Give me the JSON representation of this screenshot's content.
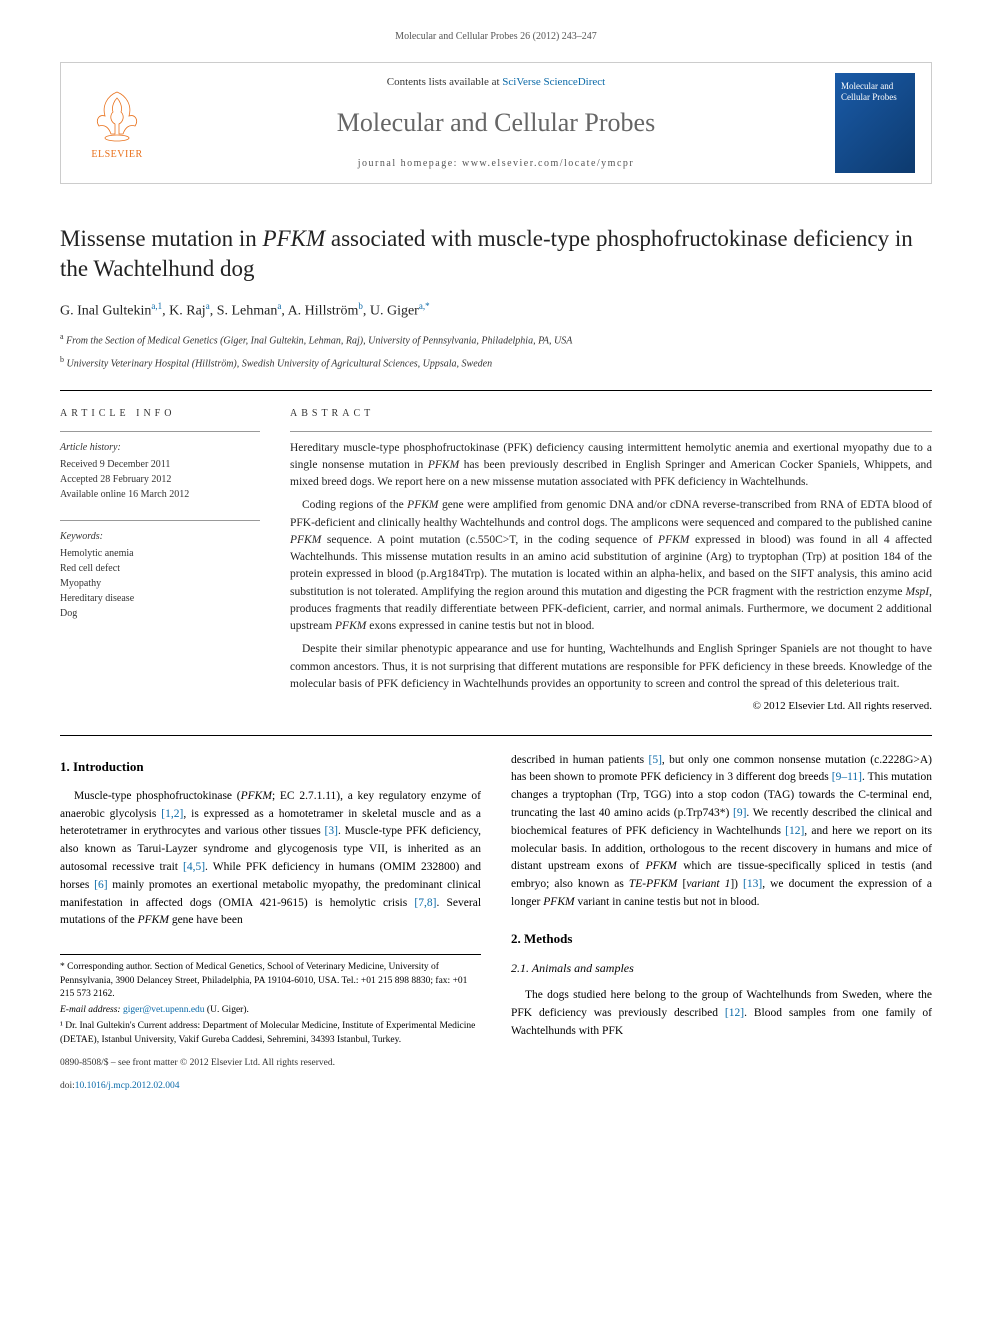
{
  "header_citation": "Molecular and Cellular Probes 26 (2012) 243–247",
  "masthead": {
    "contents_prefix": "Contents lists available at ",
    "contents_link": "SciVerse ScienceDirect",
    "journal_name": "Molecular and Cellular Probes",
    "homepage_prefix": "journal homepage: ",
    "homepage_url": "www.elsevier.com/locate/ymcpr",
    "publisher": "ELSEVIER",
    "cover_text": "Molecular and Cellular Probes"
  },
  "title_parts": {
    "pre": "Missense mutation in ",
    "gene": "PFKM",
    "post": " associated with muscle-type phosphofructokinase deficiency in the Wachtelhund dog"
  },
  "authors_html": "G. Inal Gultekin<sup>a,1</sup>, K. Raj<sup>a</sup>, S. Lehman<sup>a</sup>, A. Hillström<sup>b</sup>, U. Giger<sup>a,*</sup>",
  "affiliations": [
    {
      "sup": "a",
      "text": "From the Section of Medical Genetics (Giger, Inal Gultekin, Lehman, Raj), University of Pennsylvania, Philadelphia, PA, USA"
    },
    {
      "sup": "b",
      "text": "University Veterinary Hospital (Hillström), Swedish University of Agricultural Sciences, Uppsala, Sweden"
    }
  ],
  "article_info": {
    "label": "ARTICLE INFO",
    "history_hdr": "Article history:",
    "history": [
      "Received 9 December 2011",
      "Accepted 28 February 2012",
      "Available online 16 March 2012"
    ],
    "keywords_hdr": "Keywords:",
    "keywords": [
      "Hemolytic anemia",
      "Red cell defect",
      "Myopathy",
      "Hereditary disease",
      "Dog"
    ]
  },
  "abstract": {
    "label": "ABSTRACT",
    "paragraphs": [
      "Hereditary muscle-type phosphofructokinase (PFK) deficiency causing intermittent hemolytic anemia and exertional myopathy due to a single nonsense mutation in <span class=\"gene\">PFKM</span> has been previously described in English Springer and American Cocker Spaniels, Whippets, and mixed breed dogs. We report here on a new missense mutation associated with PFK deficiency in Wachtelhunds.",
      "Coding regions of the <span class=\"gene\">PFKM</span> gene were amplified from genomic DNA and/or cDNA reverse-transcribed from RNA of EDTA blood of PFK-deficient and clinically healthy Wachtelhunds and control dogs. The amplicons were sequenced and compared to the published canine <span class=\"gene\">PFKM</span> sequence. A point mutation (c.550C>T, in the coding sequence of <span class=\"gene\">PFKM</span> expressed in blood) was found in all 4 affected Wachtelhunds. This missense mutation results in an amino acid substitution of arginine (Arg) to tryptophan (Trp) at position 184 of the protein expressed in blood (p.Arg184Trp). The mutation is located within an alpha-helix, and based on the SIFT analysis, this amino acid substitution is not tolerated. Amplifying the region around this mutation and digesting the PCR fragment with the restriction enzyme <span class=\"gene\">MspI</span>, produces fragments that readily differentiate between PFK-deficient, carrier, and normal animals. Furthermore, we document 2 additional upstream <span class=\"gene\">PFKM</span> exons expressed in canine testis but not in blood.",
      "Despite their similar phenotypic appearance and use for hunting, Wachtelhunds and English Springer Spaniels are not thought to have common ancestors. Thus, it is not surprising that different mutations are responsible for PFK deficiency in these breeds. Knowledge of the molecular basis of PFK deficiency in Wachtelhunds provides an opportunity to screen and control the spread of this deleterious trait."
    ],
    "copyright": "© 2012 Elsevier Ltd. All rights reserved."
  },
  "intro": {
    "heading": "1. Introduction",
    "para": "Muscle-type phosphofructokinase (<span class=\"gene\">PFKM</span>; EC 2.7.1.11), a key regulatory enzyme of anaerobic glycolysis <span class=\"ref\">[1,2]</span>, is expressed as a homotetramer in skeletal muscle and as a heterotetramer in erythrocytes and various other tissues <span class=\"ref\">[3]</span>. Muscle-type PFK deficiency, also known as Tarui-Layzer syndrome and glycogenosis type VII, is inherited as an autosomal recessive trait <span class=\"ref\">[4,5]</span>. While PFK deficiency in humans (OMIM 232800) and horses <span class=\"ref\">[6]</span> mainly promotes an exertional metabolic myopathy, the predominant clinical manifestation in affected dogs (OMIA 421-9615) is hemolytic crisis <span class=\"ref\">[7,8]</span>. Several mutations of the <span class=\"gene\">PFKM</span> gene have been"
  },
  "col2": {
    "para": "described in human patients <span class=\"ref\">[5]</span>, but only one common nonsense mutation (c.2228G>A) has been shown to promote PFK deficiency in 3 different dog breeds <span class=\"ref\">[9–11]</span>. This mutation changes a tryptophan (Trp, TGG) into a stop codon (TAG) towards the C-terminal end, truncating the last 40 amino acids (p.Trp743*) <span class=\"ref\">[9]</span>. We recently described the clinical and biochemical features of PFK deficiency in Wachtelhunds <span class=\"ref\">[12]</span>, and here we report on its molecular basis. In addition, orthologous to the recent discovery in humans and mice of distant upstream exons of <span class=\"gene\">PFKM</span> which are tissue-specifically spliced in testis (and embryo; also known as <span class=\"gene\">TE-PFKM</span> [<span class=\"gene\">variant 1</span>]) <span class=\"ref\">[13]</span>, we document the expression of a longer <span class=\"gene\">PFKM</span> variant in canine testis but not in blood."
  },
  "methods": {
    "heading": "2. Methods",
    "subheading": "2.1. Animals and samples",
    "para": "The dogs studied here belong to the group of Wachtelhunds from Sweden, where the PFK deficiency was previously described <span class=\"ref\">[12]</span>. Blood samples from one family of Wachtelhunds with PFK"
  },
  "footnotes": {
    "corr": "* Corresponding author. Section of Medical Genetics, School of Veterinary Medicine, University of Pennsylvania, 3900 Delancey Street, Philadelphia, PA 19104-6010, USA. Tel.: +01 215 898 8830; fax: +01 215 573 2162.",
    "email_label": "E-mail address: ",
    "email": "giger@vet.upenn.edu",
    "email_suffix": " (U. Giger).",
    "note1": "¹ Dr. Inal Gultekin's Current address: Department of Molecular Medicine, Institute of Experimental Medicine (DETAE), Istanbul University, Vakif Gureba Caddesi, Sehremini, 34393 Istanbul, Turkey."
  },
  "footer": {
    "line1": "0890-8508/$ – see front matter © 2012 Elsevier Ltd. All rights reserved.",
    "doi_label": "doi:",
    "doi": "10.1016/j.mcp.2012.02.004"
  },
  "colors": {
    "link": "#0b6aa8",
    "elsevier_orange": "#e9711c",
    "cover_bg": "#1a5ba8"
  }
}
